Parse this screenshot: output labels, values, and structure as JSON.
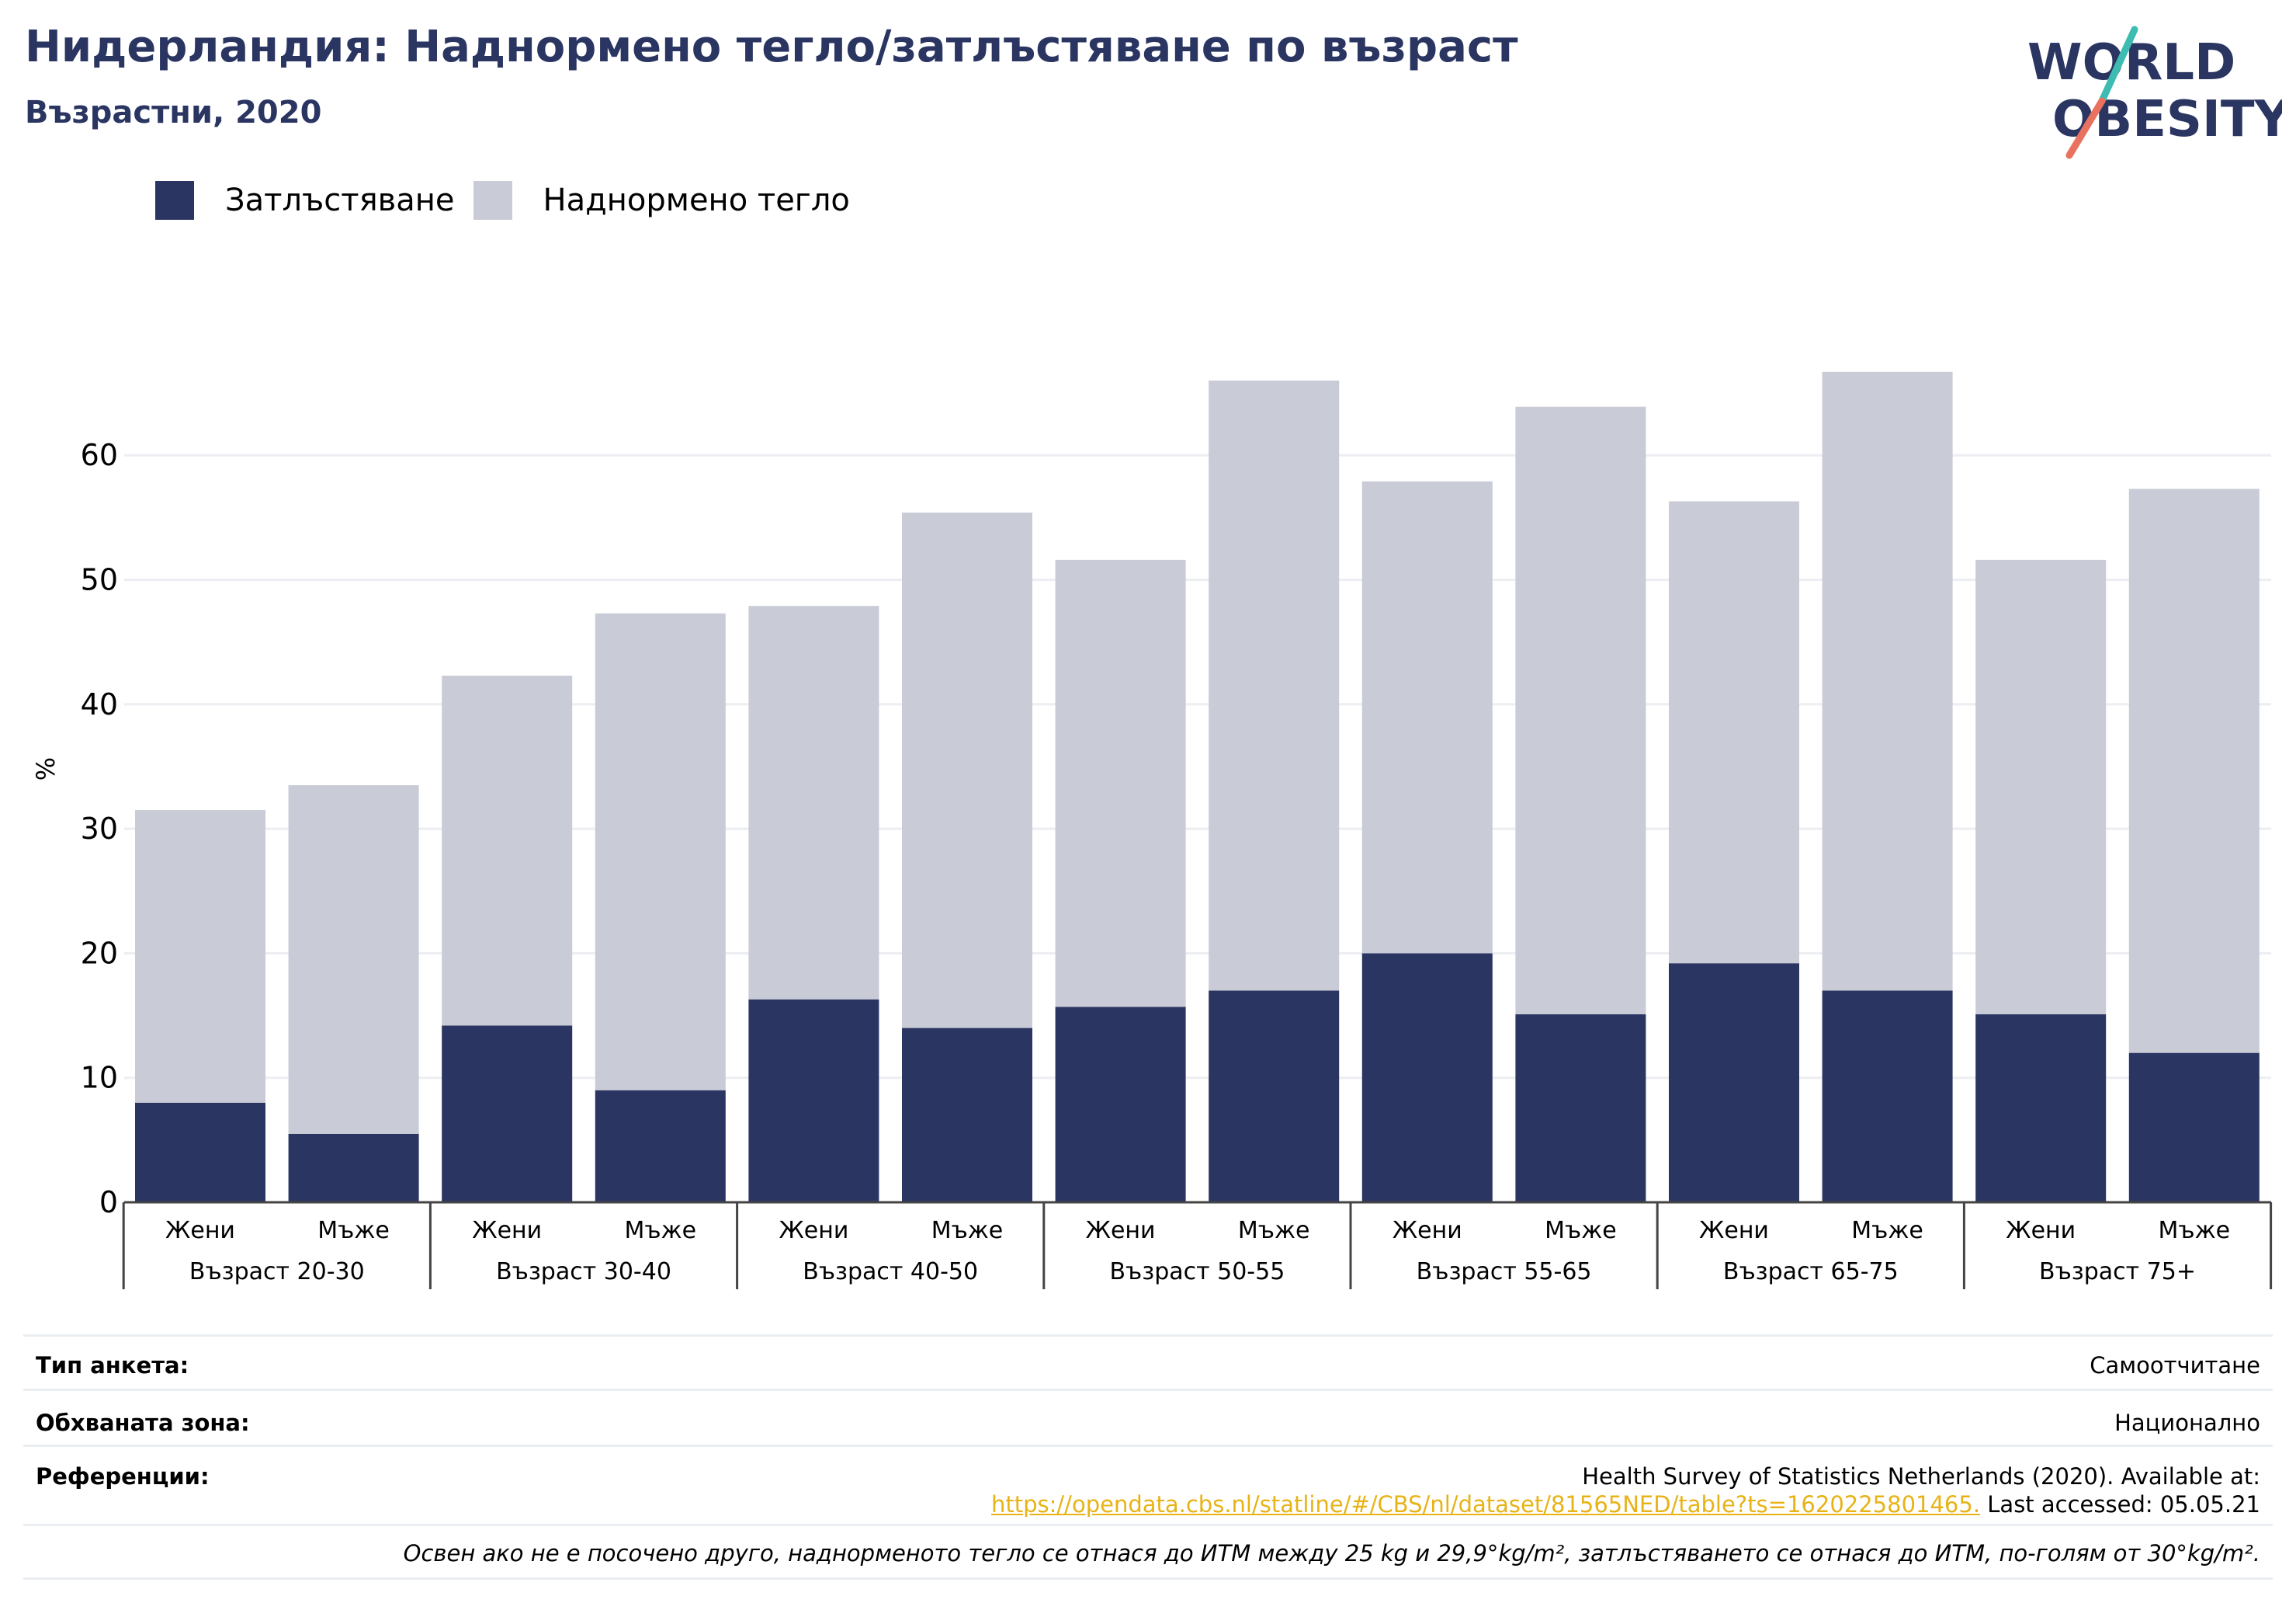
{
  "title": "Нидерландия: Наднормено тегло/затлъстяване по възраст",
  "subtitle": "Възрастни, 2020",
  "logo": {
    "line1": "WORLD",
    "line2": "OBESITY"
  },
  "colors": {
    "obesity": "#2a3562",
    "overweight": "#c9cbd6",
    "title": "#2a3562",
    "link": "#e7b316"
  },
  "chart_data": {
    "type": "bar",
    "stacked": true,
    "ylabel": "%",
    "ylim": [
      0,
      70
    ],
    "yticks": [
      0,
      10,
      20,
      30,
      40,
      50,
      60
    ],
    "grid": true,
    "legend_position": "top-left",
    "groups": [
      "Възраст 20-30",
      "Възраст 30-40",
      "Възраст 40-50",
      "Възраст 50-55",
      "Възраст 55-65",
      "Възраст 65-75",
      "Възраст 75+"
    ],
    "categories": [
      "Жени",
      "Мъже",
      "Жени",
      "Мъже",
      "Жени",
      "Мъже",
      "Жени",
      "Мъже",
      "Жени",
      "Мъже",
      "Жени",
      "Мъже",
      "Жени",
      "Мъже"
    ],
    "series": [
      {
        "name": "Затлъстяване",
        "color": "#2a3562",
        "values": [
          8,
          5.5,
          14.2,
          9,
          16.3,
          14,
          15.7,
          17,
          20,
          15.1,
          19.2,
          17,
          15.1,
          12
        ]
      },
      {
        "name": "Наднормено тегло",
        "color": "#c9cbd6",
        "values": [
          23.5,
          28,
          28.1,
          38.3,
          31.6,
          41.4,
          35.9,
          49,
          37.9,
          48.8,
          37.1,
          49.7,
          36.5,
          45.3
        ]
      }
    ]
  },
  "info": {
    "survey_type_label": "Тип анкета:",
    "survey_type_value": "Самоотчитане",
    "area_label": "Обхваната зона:",
    "area_value": "Национално",
    "references_label": "Референции:",
    "references_line1": "Health Survey of Statistics Netherlands (2020). Available at:",
    "references_link": "https://opendata.cbs.nl/statline/#/CBS/nl/dataset/81565NED/table?ts=1620225801465.",
    "references_accessed": " Last accessed: 05.05.21",
    "footnote": "Освен ако не е посочено друго, наднорменото тегло се отнася до ИТМ между 25 kg и 29,9°kg/m², затлъстяването се отнася до ИТМ, по-голям от 30°kg/m²."
  }
}
